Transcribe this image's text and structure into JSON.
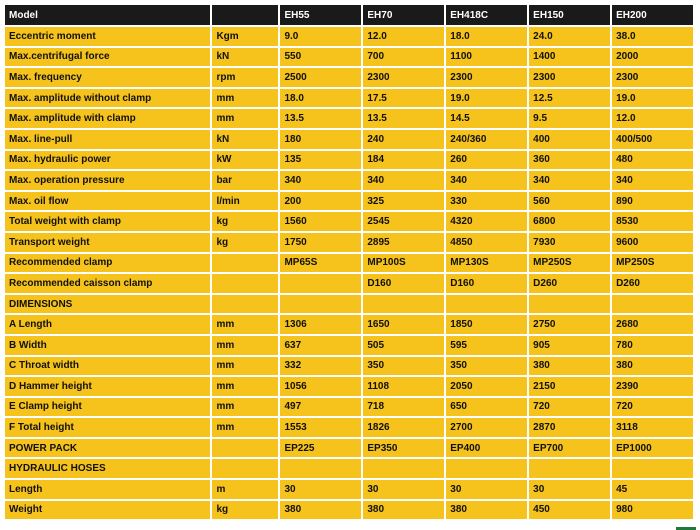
{
  "table": {
    "header": {
      "label": "Model",
      "unit": "",
      "models": [
        "EH55",
        "EH70",
        "EH418C",
        "EH150",
        "EH200"
      ]
    },
    "rows": [
      {
        "label": "Eccentric moment",
        "unit": "Kgm",
        "values": [
          "9.0",
          "12.0",
          "18.0",
          "24.0",
          "38.0"
        ]
      },
      {
        "label": "Max.centrifugal force",
        "unit": "kN",
        "values": [
          "550",
          "700",
          "1100",
          "1400",
          "2000"
        ]
      },
      {
        "label": "Max. frequency",
        "unit": "rpm",
        "values": [
          "2500",
          "2300",
          "2300",
          "2300",
          "2300"
        ]
      },
      {
        "label": "Max. amplitude without clamp",
        "unit": "mm",
        "values": [
          "18.0",
          "17.5",
          "19.0",
          "12.5",
          "19.0"
        ]
      },
      {
        "label": "Max. amplitude with clamp",
        "unit": "mm",
        "values": [
          "13.5",
          "13.5",
          "14.5",
          "9.5",
          "12.0"
        ]
      },
      {
        "label": "Max. line-pull",
        "unit": "kN",
        "values": [
          "180",
          "240",
          "240/360",
          "400",
          "400/500"
        ]
      },
      {
        "label": "Max. hydraulic power",
        "unit": "kW",
        "values": [
          "135",
          "184",
          "260",
          "360",
          "480"
        ]
      },
      {
        "label": "Max. operation pressure",
        "unit": "bar",
        "values": [
          "340",
          "340",
          "340",
          "340",
          "340"
        ]
      },
      {
        "label": "Max. oil flow",
        "unit": "l/min",
        "values": [
          "200",
          "325",
          "330",
          "560",
          "890"
        ]
      },
      {
        "label": "Total weight with clamp",
        "unit": "kg",
        "values": [
          "1560",
          "2545",
          "4320",
          "6800",
          "8530"
        ]
      },
      {
        "label": "Transport  weight",
        "unit": "kg",
        "values": [
          "1750",
          "2895",
          "4850",
          "7930",
          "9600"
        ]
      },
      {
        "label": "Recommended  clamp",
        "unit": "",
        "values": [
          "MP65S",
          "MP100S",
          "MP130S",
          "MP250S",
          "MP250S"
        ]
      },
      {
        "label": "Recommended caisson  clamp",
        "unit": "",
        "values": [
          "",
          "D160",
          "D160",
          "D260",
          "D260"
        ]
      },
      {
        "label": "DIMENSIONS",
        "unit": "",
        "values": [
          "",
          "",
          "",
          "",
          ""
        ]
      },
      {
        "label": "A Length",
        "unit": "mm",
        "values": [
          "1306",
          "1650",
          "1850",
          "2750",
          "2680"
        ]
      },
      {
        "label": "B Width",
        "unit": "mm",
        "values": [
          "637",
          "505",
          "595",
          "905",
          "780"
        ]
      },
      {
        "label": "C Throat width",
        "unit": "mm",
        "values": [
          "332",
          "350",
          "350",
          "380",
          "380"
        ]
      },
      {
        "label": "D Hammer height",
        "unit": "mm",
        "values": [
          "1056",
          "1108",
          "2050",
          "2150",
          "2390"
        ]
      },
      {
        "label": "E Clamp height",
        "unit": "mm",
        "values": [
          "497",
          "718",
          "650",
          "720",
          "720"
        ]
      },
      {
        "label": "F Total height",
        "unit": "mm",
        "values": [
          "1553",
          "1826",
          "2700",
          "2870",
          "3118"
        ]
      },
      {
        "label": "POWER PACK",
        "unit": "",
        "values": [
          "EP225",
          "EP350",
          "EP400",
          "EP700",
          "EP1000"
        ]
      },
      {
        "label": "HYDRAULIC  HOSES",
        "unit": "",
        "values": [
          "",
          "",
          "",
          "",
          ""
        ]
      },
      {
        "label": "Length",
        "unit": "m",
        "values": [
          "30",
          "30",
          "30",
          "30",
          "45"
        ]
      },
      {
        "label": "Weight",
        "unit": "kg",
        "values": [
          "380",
          "380",
          "380",
          "450",
          "980"
        ]
      }
    ]
  }
}
